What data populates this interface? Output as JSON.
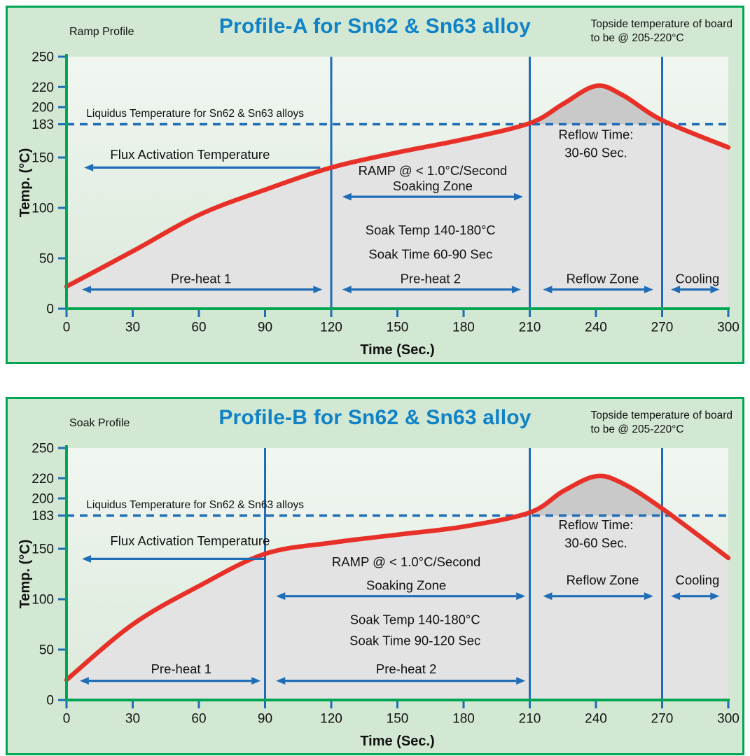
{
  "colors": {
    "panel_background": "#d3e8d3",
    "panel_border": "#00a651",
    "plot_bg_top": "#f1f6f1",
    "plot_bg_bottom": "#dbeadb",
    "title_blue": "#1082c6",
    "annotation_blue": "#1e6db6",
    "curve_red": "#e73128",
    "under_curve_fill": "#e3e3e3",
    "above_liquidus_fill": "#c9c9c9",
    "axis_green": "#00a651",
    "text_black": "#111111"
  },
  "chart_data": [
    {
      "type": "line",
      "header": {
        "profile_label": "Ramp Profile",
        "title": "Profile-A for Sn62 & Sn63 alloy",
        "topside_note_1": "Topside temperature of board",
        "topside_note_2": "to be @ 205-220°C"
      },
      "xlabel": "Time (Sec.)",
      "ylabel": "Temp. (°C)",
      "xlim": [
        0,
        300
      ],
      "ylim": [
        0,
        250
      ],
      "x_ticks": [
        0,
        30,
        60,
        90,
        120,
        150,
        180,
        210,
        240,
        270,
        300
      ],
      "y_ticks": [
        0,
        50,
        100,
        150,
        183,
        200,
        220,
        250
      ],
      "liquidus": {
        "value": 183,
        "label": "Liquidus Temperature for Sn62 & Sn63 alloys",
        "label_x": 9,
        "label_y": 194
      },
      "zone_dividers": [
        120,
        210,
        270
      ],
      "curve_points": [
        [
          0,
          22
        ],
        [
          30,
          57
        ],
        [
          60,
          93
        ],
        [
          90,
          118
        ],
        [
          120,
          140
        ],
        [
          150,
          155
        ],
        [
          180,
          168
        ],
        [
          210,
          184
        ],
        [
          225,
          203
        ],
        [
          240,
          221
        ],
        [
          252,
          212
        ],
        [
          270,
          187
        ],
        [
          300,
          160
        ]
      ],
      "annotations": [
        {
          "name": "flux-activation-label",
          "label": "Flux Activation Temperature",
          "x": 56,
          "y": 153
        },
        {
          "name": "ramp-rate-label",
          "label": "RAMP @ < 1.0°C/Second",
          "x": 166,
          "y": 137
        },
        {
          "name": "soaking-zone-label",
          "label": "Soaking Zone",
          "x": 166,
          "y": 122
        },
        {
          "name": "soak-temp-label",
          "label": "Soak Temp 140-180°C",
          "x": 165,
          "y": 78
        },
        {
          "name": "soak-time-label",
          "label": "Soak Time 60-90 Sec",
          "x": 165,
          "y": 54
        },
        {
          "name": "preheat1-label",
          "label": "Pre-heat 1",
          "x": 61,
          "y": 30
        },
        {
          "name": "preheat2-label",
          "label": "Pre-heat 2",
          "x": 165,
          "y": 30
        },
        {
          "name": "reflow-zone-label",
          "label": "Reflow Zone",
          "x": 243,
          "y": 30
        },
        {
          "name": "cooling-label",
          "label": "Cooling",
          "x": 286,
          "y": 30
        },
        {
          "name": "reflow-time-label-1",
          "label": "Reflow Time:",
          "x": 240,
          "y": 173
        },
        {
          "name": "reflow-time-label-2",
          "label": "30-60 Sec.",
          "x": 240,
          "y": 155
        }
      ],
      "arrows": [
        {
          "name": "flux-activation-arrow",
          "x1": 115,
          "x2": 8,
          "y": 140,
          "heads": "end"
        },
        {
          "name": "soaking-zone-arrow",
          "x1": 125,
          "x2": 207,
          "y": 111,
          "heads": "both"
        },
        {
          "name": "preheat1-arrow",
          "x1": 7,
          "x2": 116,
          "y": 19,
          "heads": "both"
        },
        {
          "name": "preheat2-arrow",
          "x1": 125,
          "x2": 206,
          "y": 19,
          "heads": "both"
        },
        {
          "name": "reflow-zone-arrow",
          "x1": 216,
          "x2": 266,
          "y": 19,
          "heads": "both"
        },
        {
          "name": "cooling-arrow",
          "x1": 274,
          "x2": 296,
          "y": 19,
          "heads": "both"
        }
      ]
    },
    {
      "type": "line",
      "header": {
        "profile_label": "Soak Profile",
        "title": "Profile-B for Sn62 & Sn63 alloy",
        "topside_note_1": "Topside temperature of board",
        "topside_note_2": "to be @ 205-220°C"
      },
      "xlabel": "Time (Sec.)",
      "ylabel": "Temp. (°C)",
      "xlim": [
        0,
        300
      ],
      "ylim": [
        0,
        250
      ],
      "x_ticks": [
        0,
        30,
        60,
        90,
        120,
        150,
        180,
        210,
        240,
        270,
        300
      ],
      "y_ticks": [
        0,
        50,
        100,
        150,
        183,
        200,
        220,
        250
      ],
      "liquidus": {
        "value": 183,
        "label": "Liquidus Temperature for Sn62 & Sn63 alloys",
        "label_x": 9,
        "label_y": 194
      },
      "zone_dividers": [
        90,
        210,
        270
      ],
      "curve_points": [
        [
          0,
          20
        ],
        [
          30,
          75
        ],
        [
          60,
          113
        ],
        [
          90,
          145
        ],
        [
          120,
          156
        ],
        [
          150,
          164
        ],
        [
          180,
          172
        ],
        [
          210,
          186
        ],
        [
          225,
          207
        ],
        [
          240,
          222
        ],
        [
          252,
          215
        ],
        [
          270,
          190
        ],
        [
          300,
          141
        ]
      ],
      "annotations": [
        {
          "name": "flux-activation-label",
          "label": "Flux Activation Temperature",
          "x": 56,
          "y": 158
        },
        {
          "name": "ramp-rate-label",
          "label": "RAMP @ < 1.0°C/Second",
          "x": 154,
          "y": 137
        },
        {
          "name": "soaking-zone-label",
          "label": "Soaking Zone",
          "x": 154,
          "y": 114
        },
        {
          "name": "soak-temp-label",
          "label": "Soak Temp 140-180°C",
          "x": 158,
          "y": 80
        },
        {
          "name": "soak-time-label",
          "label": "Soak Time 90-120 Sec",
          "x": 158,
          "y": 59
        },
        {
          "name": "preheat1-label",
          "label": "Pre-heat 1",
          "x": 52,
          "y": 31
        },
        {
          "name": "preheat2-label",
          "label": "Pre-heat 2",
          "x": 154,
          "y": 31
        },
        {
          "name": "reflow-zone-label",
          "label": "Reflow Zone",
          "x": 243,
          "y": 119
        },
        {
          "name": "cooling-label",
          "label": "Cooling",
          "x": 286,
          "y": 119
        },
        {
          "name": "reflow-time-label-1",
          "label": "Reflow Time:",
          "x": 240,
          "y": 174
        },
        {
          "name": "reflow-time-label-2",
          "label": "30-60 Sec.",
          "x": 240,
          "y": 156
        }
      ],
      "arrows": [
        {
          "name": "flux-activation-arrow",
          "x1": 90,
          "x2": 7,
          "y": 140,
          "heads": "end"
        },
        {
          "name": "soaking-zone-arrow",
          "x1": 95,
          "x2": 208,
          "y": 103,
          "heads": "both"
        },
        {
          "name": "preheat1-arrow",
          "x1": 6,
          "x2": 88,
          "y": 19,
          "heads": "both"
        },
        {
          "name": "preheat2-arrow",
          "x1": 95,
          "x2": 208,
          "y": 19,
          "heads": "both"
        },
        {
          "name": "reflow-zone-arrow",
          "x1": 216,
          "x2": 266,
          "y": 103,
          "heads": "both"
        },
        {
          "name": "cooling-arrow",
          "x1": 274,
          "x2": 296,
          "y": 103,
          "heads": "both"
        }
      ]
    }
  ]
}
